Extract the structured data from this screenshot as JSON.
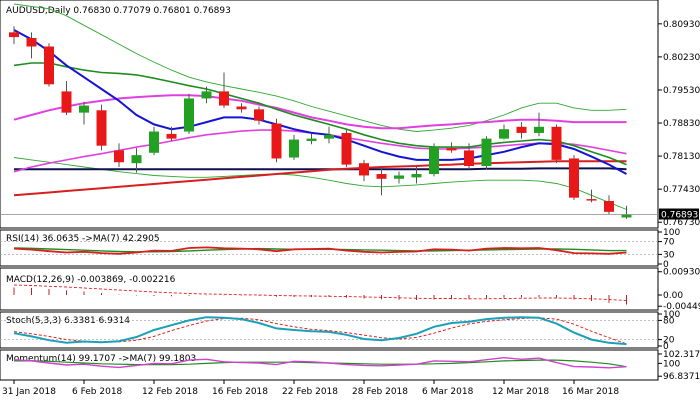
{
  "chart_data": {
    "type": "candlestick",
    "main": {
      "header": "AUDUSD,Daily  0.76830 0.77079 0.76801 0.76893",
      "current_price_label": "0.76893",
      "y_ticks": [
        "0.80930",
        "0.80230",
        "0.79530",
        "0.78830",
        "0.78130",
        "0.77430",
        "0.76730"
      ],
      "y_tick_values": [
        0.8093,
        0.8023,
        0.7953,
        0.7883,
        0.7813,
        0.7743,
        0.7673
      ],
      "ylim": [
        0.7665,
        0.8135
      ],
      "current_price": 0.76893,
      "colors": {
        "up": "#22a022",
        "down": "#e81818",
        "ma_blue": "#1414d2",
        "ma_green": "#1e8c1e",
        "ma_magenta": "#e040e0",
        "ma_red": "#d81e1e",
        "ma_navy": "#101050",
        "envelope": "#2ea82e"
      },
      "candles": [
        [
          0.8075,
          0.8088,
          0.805,
          0.8065
        ],
        [
          0.8063,
          0.8075,
          0.802,
          0.8045
        ],
        [
          0.8045,
          0.8052,
          0.796,
          0.7965
        ],
        [
          0.795,
          0.7972,
          0.79,
          0.7905
        ],
        [
          0.7905,
          0.7928,
          0.788,
          0.792
        ],
        [
          0.791,
          0.7922,
          0.7825,
          0.7835
        ],
        [
          0.7825,
          0.784,
          0.779,
          0.78
        ],
        [
          0.7798,
          0.783,
          0.7778,
          0.7815
        ],
        [
          0.782,
          0.7875,
          0.7815,
          0.7865
        ],
        [
          0.786,
          0.7875,
          0.7845,
          0.785
        ],
        [
          0.7865,
          0.7945,
          0.786,
          0.7935
        ],
        [
          0.7935,
          0.796,
          0.7925,
          0.795
        ],
        [
          0.795,
          0.799,
          0.7915,
          0.792
        ],
        [
          0.7918,
          0.7925,
          0.7905,
          0.7912
        ],
        [
          0.7912,
          0.7918,
          0.788,
          0.7888
        ],
        [
          0.7882,
          0.7892,
          0.78,
          0.7808
        ],
        [
          0.781,
          0.7858,
          0.7805,
          0.7848
        ],
        [
          0.7845,
          0.786,
          0.7838,
          0.785
        ],
        [
          0.785,
          0.7875,
          0.784,
          0.7858
        ],
        [
          0.7862,
          0.7868,
          0.779,
          0.7795
        ],
        [
          0.7798,
          0.7805,
          0.776,
          0.7772
        ],
        [
          0.7775,
          0.779,
          0.773,
          0.7765
        ],
        [
          0.7765,
          0.778,
          0.7755,
          0.7772
        ],
        [
          0.7768,
          0.779,
          0.7755,
          0.7775
        ],
        [
          0.7775,
          0.784,
          0.777,
          0.7832
        ],
        [
          0.783,
          0.7842,
          0.782,
          0.7825
        ],
        [
          0.7825,
          0.784,
          0.7785,
          0.7792
        ],
        [
          0.7792,
          0.7855,
          0.7785,
          0.785
        ],
        [
          0.785,
          0.788,
          0.7848,
          0.787
        ],
        [
          0.7875,
          0.7885,
          0.785,
          0.7862
        ],
        [
          0.7862,
          0.7905,
          0.7855,
          0.7875
        ],
        [
          0.7875,
          0.788,
          0.7798,
          0.7805
        ],
        [
          0.7808,
          0.7815,
          0.772,
          0.7725
        ],
        [
          0.7722,
          0.7742,
          0.7715,
          0.772
        ],
        [
          0.7718,
          0.773,
          0.769,
          0.7695
        ],
        [
          0.7683,
          0.77079,
          0.76801,
          0.76893
        ]
      ],
      "moving_averages": {
        "ma_blue": [
          0.808,
          0.806,
          0.8035,
          0.8005,
          0.798,
          0.7955,
          0.793,
          0.79,
          0.788,
          0.787,
          0.7875,
          0.7885,
          0.7895,
          0.7895,
          0.789,
          0.788,
          0.787,
          0.7862,
          0.7858,
          0.7848,
          0.7835,
          0.7822,
          0.7812,
          0.7805,
          0.7805,
          0.7805,
          0.7808,
          0.7815,
          0.7822,
          0.7832,
          0.784,
          0.7838,
          0.7828,
          0.7812,
          0.7795,
          0.7775
        ],
        "ma_green": [
          0.8005,
          0.801,
          0.801,
          0.8002,
          0.7995,
          0.799,
          0.7988,
          0.7985,
          0.7978,
          0.797,
          0.7962,
          0.7955,
          0.7945,
          0.7935,
          0.7925,
          0.7912,
          0.79,
          0.789,
          0.788,
          0.787,
          0.7858,
          0.7848,
          0.784,
          0.7835,
          0.7832,
          0.7832,
          0.7832,
          0.7838,
          0.7842,
          0.7845,
          0.7848,
          0.7845,
          0.7835,
          0.7822,
          0.781,
          0.7795
        ],
        "ma_magenta": [
          0.789,
          0.79,
          0.791,
          0.7918,
          0.7925,
          0.793,
          0.7935,
          0.7938,
          0.794,
          0.7942,
          0.7942,
          0.794,
          0.7935,
          0.793,
          0.7922,
          0.7915,
          0.7905,
          0.7895,
          0.7888,
          0.788,
          0.7875,
          0.7872,
          0.7872,
          0.7875,
          0.7878,
          0.788,
          0.7883,
          0.7885,
          0.7888,
          0.789,
          0.789,
          0.7888,
          0.7885,
          0.7885,
          0.7885,
          0.7885
        ],
        "ma_pink": [
          0.778,
          0.779,
          0.7798,
          0.7805,
          0.7812,
          0.7818,
          0.7825,
          0.7832,
          0.7838,
          0.7845,
          0.7852,
          0.7858,
          0.7862,
          0.7866,
          0.7868,
          0.7868,
          0.7866,
          0.7862,
          0.7858,
          0.7852,
          0.7846,
          0.784,
          0.7835,
          0.783,
          0.7828,
          0.7828,
          0.783,
          0.7832,
          0.7835,
          0.7838,
          0.784,
          0.784,
          0.7838,
          0.7832,
          0.7825,
          0.7818
        ],
        "ma_red": [
          0.773,
          0.7733,
          0.7736,
          0.7739,
          0.7742,
          0.7745,
          0.7748,
          0.7751,
          0.7754,
          0.7757,
          0.776,
          0.7763,
          0.7766,
          0.7769,
          0.7772,
          0.7775,
          0.7778,
          0.7781,
          0.7784,
          0.7786,
          0.7788,
          0.779,
          0.7791,
          0.7792,
          0.7794,
          0.7795,
          0.7797,
          0.7798,
          0.7799,
          0.78,
          0.7801,
          0.7802,
          0.7802,
          0.7802,
          0.7802,
          0.7802
        ],
        "ma_navy": [
          0.7785,
          0.7785,
          0.7785,
          0.7785,
          0.7785,
          0.7785,
          0.7785,
          0.7785,
          0.7785,
          0.7785,
          0.7785,
          0.7785,
          0.7785,
          0.7785,
          0.7785,
          0.7785,
          0.7785,
          0.7785,
          0.7785,
          0.7785,
          0.7785,
          0.7785,
          0.7785,
          0.7785,
          0.7785,
          0.7785,
          0.7785,
          0.7786,
          0.7786,
          0.7786,
          0.7787,
          0.7787,
          0.7787,
          0.7787,
          0.7787,
          0.7785
        ],
        "env_upper": [
          0.8135,
          0.813,
          0.8125,
          0.811,
          0.809,
          0.807,
          0.805,
          0.803,
          0.8012,
          0.7995,
          0.798,
          0.797,
          0.7962,
          0.7955,
          0.7948,
          0.794,
          0.793,
          0.7918,
          0.7908,
          0.7898,
          0.7888,
          0.7878,
          0.787,
          0.7865,
          0.7868,
          0.7872,
          0.7878,
          0.7888,
          0.79,
          0.7915,
          0.7925,
          0.7925,
          0.7915,
          0.791,
          0.791,
          0.7912
        ],
        "env_lower": [
          0.781,
          0.7805,
          0.78,
          0.7795,
          0.779,
          0.7785,
          0.778,
          0.7776,
          0.7772,
          0.777,
          0.7768,
          0.7768,
          0.777,
          0.7772,
          0.7774,
          0.7775,
          0.7773,
          0.7768,
          0.7762,
          0.7755,
          0.775,
          0.7748,
          0.775,
          0.7752,
          0.7755,
          0.7758,
          0.776,
          0.7762,
          0.7762,
          0.7762,
          0.776,
          0.7755,
          0.7745,
          0.773,
          0.7715,
          0.77
        ]
      }
    },
    "rsi": {
      "header": "RSI(14) 36.0635  ->MA(7) 42.2905",
      "y_ticks": [
        "100",
        "70",
        "30",
        "0"
      ],
      "y_tick_values": [
        100,
        70,
        30,
        0
      ],
      "ylim": [
        0,
        100
      ],
      "levels": [
        70,
        30
      ],
      "rsi": [
        48,
        45,
        40,
        36,
        38,
        34,
        32,
        36,
        42,
        41,
        50,
        52,
        49,
        48,
        46,
        40,
        46,
        47,
        48,
        42,
        38,
        36,
        38,
        39,
        46,
        45,
        42,
        48,
        50,
        49,
        50,
        43,
        34,
        33,
        32,
        36
      ],
      "rsi_ma": [
        50,
        49,
        47,
        45,
        43,
        41,
        39,
        38,
        38,
        39,
        41,
        43,
        45,
        47,
        48,
        47,
        46,
        46,
        46,
        45,
        44,
        43,
        42,
        41,
        41,
        42,
        43,
        44,
        45,
        46,
        47,
        47,
        46,
        44,
        42,
        42
      ]
    },
    "macd": {
      "header": "MACD(12,26,9) -0.003869, -0.002216",
      "y_ticks": [
        "0.009302",
        "0.00",
        "-0.004496"
      ],
      "y_tick_values": [
        0.009302,
        0.0,
        -0.004496
      ],
      "ylim": [
        -0.0052,
        0.01
      ],
      "macd": [
        0.003,
        0.0028,
        0.0024,
        0.0018,
        0.0014,
        0.0008,
        0.0002,
        -0.0002,
        -0.0004,
        -0.0005,
        -0.0003,
        -0.0001,
        -0.0001,
        -0.0002,
        -0.0003,
        -0.0007,
        -0.0008,
        -0.0008,
        -0.0008,
        -0.0011,
        -0.0014,
        -0.0017,
        -0.0019,
        -0.002,
        -0.0018,
        -0.0017,
        -0.0017,
        -0.0014,
        -0.0011,
        -0.001,
        -0.0008,
        -0.0011,
        -0.0018,
        -0.0024,
        -0.0031,
        -0.0038
      ],
      "signal": [
        0.004,
        0.0038,
        0.0035,
        0.0032,
        0.0028,
        0.0024,
        0.002,
        0.0016,
        0.0012,
        0.0009,
        0.0006,
        0.0004,
        0.0003,
        0.0001,
        0.0,
        -0.0002,
        -0.0003,
        -0.0004,
        -0.0005,
        -0.0006,
        -0.0008,
        -0.0009,
        -0.0011,
        -0.0013,
        -0.0014,
        -0.0014,
        -0.0015,
        -0.0015,
        -0.0014,
        -0.0013,
        -0.0012,
        -0.0012,
        -0.0013,
        -0.0015,
        -0.0018,
        -0.0022
      ]
    },
    "stoch": {
      "header": "Stoch(5,3,3) 6.3381 6.9314",
      "y_ticks": [
        "100",
        "80",
        "20",
        "0"
      ],
      "y_tick_values": [
        100,
        80,
        20,
        0
      ],
      "ylim": [
        0,
        100
      ],
      "levels": [
        80,
        20
      ],
      "k": [
        40,
        30,
        18,
        10,
        14,
        12,
        15,
        28,
        50,
        65,
        80,
        90,
        88,
        84,
        72,
        55,
        50,
        46,
        44,
        35,
        22,
        18,
        25,
        38,
        60,
        72,
        76,
        84,
        88,
        90,
        88,
        70,
        42,
        20,
        10,
        6
      ],
      "d": [
        45,
        38,
        30,
        20,
        15,
        12,
        13,
        18,
        30,
        48,
        64,
        78,
        86,
        87,
        82,
        70,
        60,
        52,
        48,
        42,
        34,
        26,
        22,
        27,
        40,
        56,
        69,
        77,
        82,
        86,
        88,
        84,
        68,
        46,
        26,
        7
      ]
    },
    "momentum": {
      "header": "Momentum(14) 99.1707  ->MA(7) 99.1803",
      "y_ticks": [
        "102.3173",
        "100",
        "96.8371"
      ],
      "y_tick_values": [
        102.3173,
        100,
        96.8371
      ],
      "ylim": [
        96.4,
        102.8
      ],
      "mom": [
        100.9,
        100.6,
        100.1,
        99.6,
        99.8,
        99.3,
        99.0,
        99.5,
        100.0,
        99.9,
        100.8,
        101.0,
        100.4,
        100.2,
        100.1,
        99.7,
        100.5,
        100.4,
        100.1,
        99.7,
        99.5,
        99.4,
        99.6,
        99.8,
        100.6,
        100.5,
        100.4,
        100.9,
        101.4,
        101.0,
        101.3,
        100.2,
        99.2,
        99.1,
        98.9,
        99.17
      ],
      "mom_ma": [
        100.6,
        100.6,
        100.5,
        100.3,
        100.1,
        99.9,
        99.8,
        99.7,
        99.7,
        99.7,
        99.8,
        100.0,
        100.2,
        100.3,
        100.3,
        100.3,
        100.3,
        100.2,
        100.1,
        100.0,
        99.9,
        99.8,
        99.8,
        99.8,
        99.9,
        100.0,
        100.2,
        100.4,
        100.6,
        100.7,
        100.8,
        100.8,
        100.6,
        100.3,
        99.9,
        99.18
      ]
    },
    "x_tick_labels": [
      "31 Jan 2018",
      "6 Feb 2018",
      "12 Feb 2018",
      "16 Feb 2018",
      "22 Feb 2018",
      "28 Feb 2018",
      "6 Mar 2018",
      "12 Mar 2018",
      "16 Mar 2018"
    ],
    "x_tick_index": [
      0,
      4,
      8,
      12,
      16,
      20,
      24,
      28,
      32
    ]
  }
}
